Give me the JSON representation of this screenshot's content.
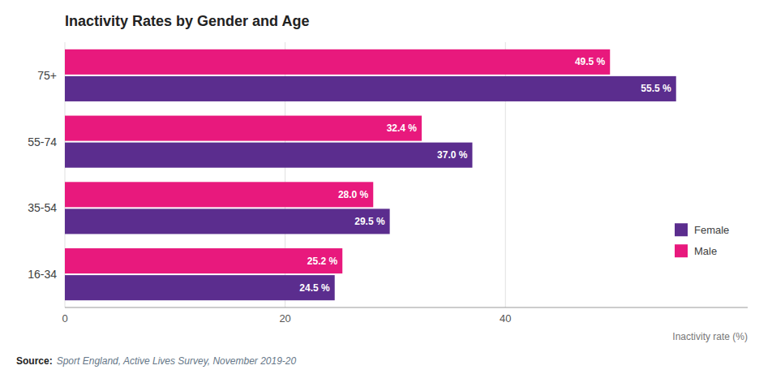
{
  "chart_data": {
    "type": "bar",
    "orientation": "horizontal",
    "title": "Inactivity Rates by Gender and Age",
    "categories": [
      "16-34",
      "35-54",
      "55-74",
      "75+"
    ],
    "series": [
      {
        "name": "Female",
        "color": "#5b2d8e",
        "values": [
          24.5,
          29.5,
          37.0,
          55.5
        ],
        "value_labels": [
          "24.5 %",
          "29.5 %",
          "37.0 %",
          "55.5 %"
        ]
      },
      {
        "name": "Male",
        "color": "#e8197d",
        "values": [
          25.2,
          28.0,
          32.4,
          49.5
        ],
        "value_labels": [
          "25.2 %",
          "28.0 %",
          "32.4 %",
          "49.5 %"
        ]
      }
    ],
    "x_label": "Inactivity rate (%)",
    "xlim": [
      0,
      62
    ],
    "xticks": [
      0,
      20,
      40
    ],
    "grid": true,
    "legend": "right",
    "data_labels": true,
    "annotations": [
      "Source:",
      "Sport England, Active Lives Survey, November 2019-20"
    ]
  }
}
